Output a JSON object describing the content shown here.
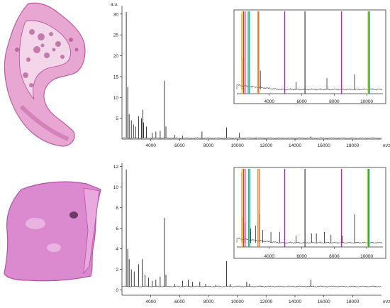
{
  "chart_data": [
    {
      "type": "line",
      "name": "spectrum-top",
      "ylabel": "a.u.",
      "xunit": "m/z",
      "xlim": [
        2000,
        20000
      ],
      "ylim": [
        0,
        32
      ],
      "xticks": [
        4000,
        6000,
        8000,
        10000,
        12000,
        14000,
        16000,
        18000
      ],
      "yticks": [
        5,
        10,
        15,
        20,
        25,
        30
      ],
      "peaks": [
        {
          "mz": 2300,
          "height": 30.5
        },
        {
          "mz": 2400,
          "height": 12.5
        },
        {
          "mz": 2500,
          "height": 6.0
        },
        {
          "mz": 2650,
          "height": 4.5
        },
        {
          "mz": 2800,
          "height": 3.5
        },
        {
          "mz": 2950,
          "height": 3.0
        },
        {
          "mz": 3150,
          "height": 5.5
        },
        {
          "mz": 3350,
          "height": 5.0
        },
        {
          "mz": 3450,
          "height": 7.0
        },
        {
          "mz": 3500,
          "height": 4.0
        },
        {
          "mz": 3700,
          "height": 3.0
        },
        {
          "mz": 4100,
          "height": 1.5
        },
        {
          "mz": 4350,
          "height": 1.8
        },
        {
          "mz": 4650,
          "height": 2.0
        },
        {
          "mz": 4950,
          "height": 14.0
        },
        {
          "mz": 5050,
          "height": 3.0
        },
        {
          "mz": 5650,
          "height": 1.0
        },
        {
          "mz": 6200,
          "height": 0.8
        },
        {
          "mz": 7550,
          "height": 1.8
        },
        {
          "mz": 9250,
          "height": 2.8
        },
        {
          "mz": 10150,
          "height": 1.5
        },
        {
          "mz": 11300,
          "height": 0.4
        },
        {
          "mz": 15100,
          "height": 0.6
        }
      ],
      "inset": {
        "xlim": [
          2000,
          11000
        ],
        "xticks": [
          4000,
          6000,
          8000,
          10000
        ],
        "peaks": [
          {
            "mz": 2300,
            "height": 1.0
          },
          {
            "mz": 2400,
            "height": 0.42
          },
          {
            "mz": 3350,
            "height": 0.2
          },
          {
            "mz": 3450,
            "height": 0.25
          },
          {
            "mz": 4950,
            "height": 0.47
          },
          {
            "mz": 5650,
            "height": 0.1
          },
          {
            "mz": 6200,
            "height": 0.12
          },
          {
            "mz": 7550,
            "height": 0.15
          },
          {
            "mz": 9250,
            "height": 0.2
          },
          {
            "mz": 10150,
            "height": 0.12
          }
        ],
        "markers": [
          {
            "mz": 2320,
            "color": "#f0c000"
          },
          {
            "mz": 2420,
            "color": "#e03030"
          },
          {
            "mz": 2520,
            "color": "#ff4fa0"
          },
          {
            "mz": 2700,
            "color": "#2cbf4f"
          },
          {
            "mz": 2780,
            "color": "#18a9c8"
          },
          {
            "mz": 3300,
            "color": "#ff8a20"
          },
          {
            "mz": 3350,
            "color": "#e07050"
          },
          {
            "mz": 4950,
            "color": "#9030c0"
          },
          {
            "mz": 6200,
            "color": "#555555"
          },
          {
            "mz": 8450,
            "color": "#e0208a"
          },
          {
            "mz": 10080,
            "color": "#f0e000"
          },
          {
            "mz": 10130,
            "color": "#20b040"
          },
          {
            "mz": 10170,
            "color": "#20a0d0"
          }
        ]
      }
    },
    {
      "type": "line",
      "name": "spectrum-bottom",
      "ylabel": "",
      "xunit": "m/z",
      "xlim": [
        2000,
        20000
      ],
      "ylim": [
        -0.5,
        12.3
      ],
      "xticks": [
        4000,
        6000,
        8000,
        10000,
        12000,
        14000,
        16000,
        18000
      ],
      "yticks": [
        0,
        2,
        4,
        6,
        8,
        10,
        12
      ],
      "peaks": [
        {
          "mz": 2300,
          "height": 11.7
        },
        {
          "mz": 2400,
          "height": 4.0
        },
        {
          "mz": 2500,
          "height": 3.0
        },
        {
          "mz": 2650,
          "height": 2.0
        },
        {
          "mz": 2850,
          "height": 1.8
        },
        {
          "mz": 3150,
          "height": 2.5
        },
        {
          "mz": 3400,
          "height": 3.0
        },
        {
          "mz": 3600,
          "height": 1.5
        },
        {
          "mz": 3850,
          "height": 1.2
        },
        {
          "mz": 4100,
          "height": 0.9
        },
        {
          "mz": 4350,
          "height": 1.0
        },
        {
          "mz": 4650,
          "height": 1.3
        },
        {
          "mz": 4950,
          "height": 7.0
        },
        {
          "mz": 5050,
          "height": 1.5
        },
        {
          "mz": 5650,
          "height": 0.6
        },
        {
          "mz": 6200,
          "height": 0.9
        },
        {
          "mz": 6600,
          "height": 1.0
        },
        {
          "mz": 6900,
          "height": 0.8
        },
        {
          "mz": 7400,
          "height": 0.8
        },
        {
          "mz": 7800,
          "height": 0.6
        },
        {
          "mz": 8500,
          "height": 0.5
        },
        {
          "mz": 9250,
          "height": 2.8
        },
        {
          "mz": 9500,
          "height": 0.6
        },
        {
          "mz": 10650,
          "height": 0.8
        },
        {
          "mz": 10850,
          "height": 0.6
        },
        {
          "mz": 11700,
          "height": 0.4
        },
        {
          "mz": 14100,
          "height": 0.3
        },
        {
          "mz": 15100,
          "height": 1.0
        },
        {
          "mz": 15300,
          "height": 0.4
        }
      ],
      "inset": {
        "xlim": [
          2000,
          11000
        ],
        "xticks": [
          4000,
          6000,
          8000,
          10000
        ],
        "peaks": [
          {
            "mz": 2300,
            "height": 1.0
          },
          {
            "mz": 2400,
            "height": 0.35
          },
          {
            "mz": 2500,
            "height": 0.28
          },
          {
            "mz": 2850,
            "height": 0.2
          },
          {
            "mz": 3150,
            "height": 0.24
          },
          {
            "mz": 3400,
            "height": 0.4
          },
          {
            "mz": 3600,
            "height": 0.18
          },
          {
            "mz": 4100,
            "height": 0.15
          },
          {
            "mz": 4650,
            "height": 0.15
          },
          {
            "mz": 4950,
            "height": 0.6
          },
          {
            "mz": 5650,
            "height": 0.1
          },
          {
            "mz": 6200,
            "height": 0.12
          },
          {
            "mz": 6600,
            "height": 0.13
          },
          {
            "mz": 6900,
            "height": 0.13
          },
          {
            "mz": 7400,
            "height": 0.15
          },
          {
            "mz": 7800,
            "height": 0.11
          },
          {
            "mz": 8500,
            "height": 0.1
          },
          {
            "mz": 9250,
            "height": 0.4
          }
        ],
        "markers": [
          {
            "mz": 2320,
            "color": "#f0c000"
          },
          {
            "mz": 2420,
            "color": "#e03030"
          },
          {
            "mz": 2520,
            "color": "#ff4fa0"
          },
          {
            "mz": 2720,
            "color": "#2cbf4f"
          },
          {
            "mz": 2800,
            "color": "#18a9c8"
          },
          {
            "mz": 3300,
            "color": "#ff8a20"
          },
          {
            "mz": 3380,
            "color": "#e07050"
          },
          {
            "mz": 4950,
            "color": "#9030c0"
          },
          {
            "mz": 6200,
            "color": "#555555"
          },
          {
            "mz": 8450,
            "color": "#e0208a"
          },
          {
            "mz": 10050,
            "color": "#f0e000"
          },
          {
            "mz": 10100,
            "color": "#20b040"
          },
          {
            "mz": 10150,
            "color": "#20a0d0"
          }
        ]
      }
    }
  ]
}
